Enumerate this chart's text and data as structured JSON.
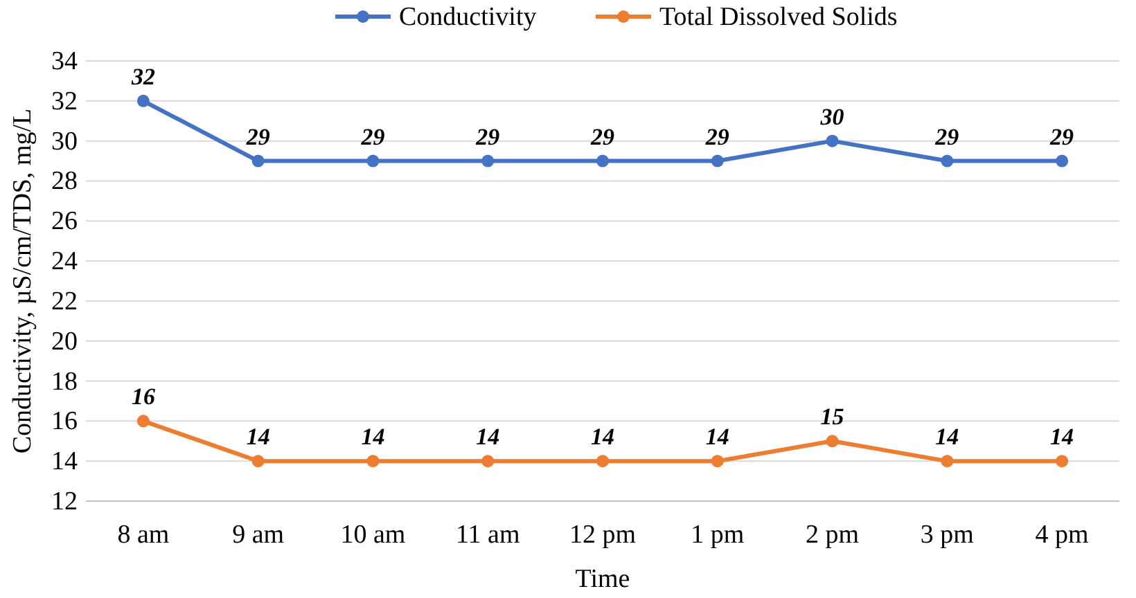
{
  "chart_data": {
    "type": "line",
    "xlabel": "Time",
    "ylabel": "Conductivity, µS/cm/TDS, mg/L",
    "categories": [
      "8 am",
      "9 am",
      "10 am",
      "11 am",
      "12 pm",
      "1 pm",
      "2 pm",
      "3 pm",
      "4 pm"
    ],
    "series": [
      {
        "name": "Conductivity",
        "color": "#4472c4",
        "values": [
          32,
          29,
          29,
          29,
          29,
          29,
          30,
          29,
          29
        ]
      },
      {
        "name": "Total Dissolved Solids",
        "color": "#ed7d31",
        "values": [
          16,
          14,
          14,
          14,
          14,
          14,
          15,
          14,
          14
        ]
      }
    ],
    "ylim": [
      12,
      34
    ],
    "yticks": [
      12,
      14,
      16,
      18,
      20,
      22,
      24,
      26,
      28,
      30,
      32,
      34
    ],
    "grid": "y",
    "legend": "top",
    "marker": "circle",
    "line_style": "solid",
    "data_labels": true
  }
}
